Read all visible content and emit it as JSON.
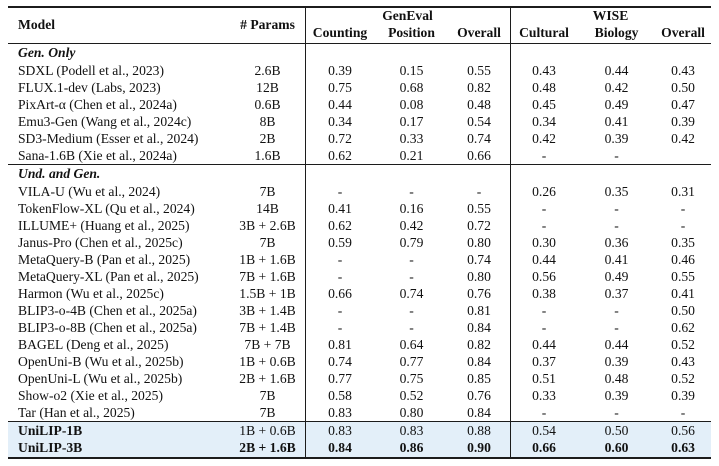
{
  "table": {
    "headers": {
      "model": "Model",
      "params": "# Params",
      "group1": "GenEval",
      "group2": "WISE",
      "cols": [
        "Counting",
        "Position",
        "Overall",
        "Cultural",
        "Biology",
        "Overall"
      ]
    },
    "sections": [
      {
        "label": "Gen. Only",
        "rows": [
          {
            "model": "SDXL (Podell et al., 2023)",
            "params": "2.6B",
            "values": [
              "0.39",
              "0.15",
              "0.55",
              "0.43",
              "0.44",
              "0.43"
            ]
          },
          {
            "model": "FLUX.1-dev (Labs, 2023)",
            "params": "12B",
            "values": [
              "0.75",
              "0.68",
              "0.82",
              "0.48",
              "0.42",
              "0.50"
            ]
          },
          {
            "model": "PixArt-α (Chen et al., 2024a)",
            "params": "0.6B",
            "values": [
              "0.44",
              "0.08",
              "0.48",
              "0.45",
              "0.49",
              "0.47"
            ]
          },
          {
            "model": "Emu3-Gen (Wang et al., 2024c)",
            "params": "8B",
            "values": [
              "0.34",
              "0.17",
              "0.54",
              "0.34",
              "0.41",
              "0.39"
            ]
          },
          {
            "model": "SD3-Medium (Esser et al., 2024)",
            "params": "2B",
            "values": [
              "0.72",
              "0.33",
              "0.74",
              "0.42",
              "0.39",
              "0.42"
            ]
          },
          {
            "model": "Sana-1.6B (Xie et al., 2024a)",
            "params": "1.6B",
            "values": [
              "0.62",
              "0.21",
              "0.66",
              "-",
              "-",
              ""
            ]
          }
        ]
      },
      {
        "label": "Und. and Gen.",
        "rows": [
          {
            "model": "VILA-U (Wu et al., 2024)",
            "params": "7B",
            "values": [
              "-",
              "-",
              "-",
              "0.26",
              "0.35",
              "0.31"
            ]
          },
          {
            "model": "TokenFlow-XL (Qu et al., 2024)",
            "params": "14B",
            "values": [
              "0.41",
              "0.16",
              "0.55",
              "-",
              "-",
              "-"
            ]
          },
          {
            "model": "ILLUME+ (Huang et al., 2025)",
            "params": "3B + 2.6B",
            "values": [
              "0.62",
              "0.42",
              "0.72",
              "-",
              "-",
              "-"
            ]
          },
          {
            "model": "Janus-Pro (Chen et al., 2025c)",
            "params": "7B",
            "values": [
              "0.59",
              "0.79",
              "0.80",
              "0.30",
              "0.36",
              "0.35"
            ]
          },
          {
            "model": "MetaQuery-B (Pan et al., 2025)",
            "params": "1B + 1.6B",
            "values": [
              "-",
              "-",
              "0.74",
              "0.44",
              "0.41",
              "0.46"
            ]
          },
          {
            "model": "MetaQuery-XL (Pan et al., 2025)",
            "params": "7B + 1.6B",
            "values": [
              "-",
              "-",
              "0.80",
              "0.56",
              "0.49",
              "0.55"
            ]
          },
          {
            "model": "Harmon (Wu et al., 2025c)",
            "params": "1.5B + 1B",
            "values": [
              "0.66",
              "0.74",
              "0.76",
              "0.38",
              "0.37",
              "0.41"
            ]
          },
          {
            "model": "BLIP3-o-4B (Chen et al., 2025a)",
            "params": "3B + 1.4B",
            "values": [
              "-",
              "-",
              "0.81",
              "-",
              "-",
              "0.50"
            ]
          },
          {
            "model": "BLIP3-o-8B (Chen et al., 2025a)",
            "params": "7B + 1.4B",
            "values": [
              "-",
              "-",
              "0.84",
              "-",
              "-",
              "0.62"
            ]
          },
          {
            "model": "BAGEL (Deng et al., 2025)",
            "params": "7B + 7B",
            "values": [
              "0.81",
              "0.64",
              "0.82",
              "0.44",
              "0.44",
              "0.52"
            ]
          },
          {
            "model": "OpenUni-B (Wu et al., 2025b)",
            "params": "1B + 0.6B",
            "values": [
              "0.74",
              "0.77",
              "0.84",
              "0.37",
              "0.39",
              "0.43"
            ]
          },
          {
            "model": "OpenUni-L (Wu et al., 2025b)",
            "params": "2B + 1.6B",
            "values": [
              "0.77",
              "0.75",
              "0.85",
              "0.51",
              "0.48",
              "0.52"
            ]
          },
          {
            "model": "Show-o2 (Xie et al., 2025)",
            "params": "7B",
            "values": [
              "0.58",
              "0.52",
              "0.76",
              "0.33",
              "0.39",
              "0.39"
            ]
          },
          {
            "model": "Tar (Han et al., 2025)",
            "params": "7B",
            "values": [
              "0.83",
              "0.80",
              "0.84",
              "-",
              "-",
              "-"
            ]
          }
        ]
      }
    ],
    "highlight_rows": [
      {
        "model": "UniLIP-1B",
        "params": "1B + 0.6B",
        "values": [
          "0.83",
          "0.83",
          "0.88",
          "0.54",
          "0.50",
          "0.56"
        ],
        "bold_values": false
      },
      {
        "model": "UniLIP-3B",
        "params": "2B + 1.6B",
        "values": [
          "0.84",
          "0.86",
          "0.90",
          "0.66",
          "0.60",
          "0.63"
        ],
        "bold_values": true
      }
    ],
    "highlight_color": "#e3eff9",
    "rule_color": "#1c1c1c"
  }
}
